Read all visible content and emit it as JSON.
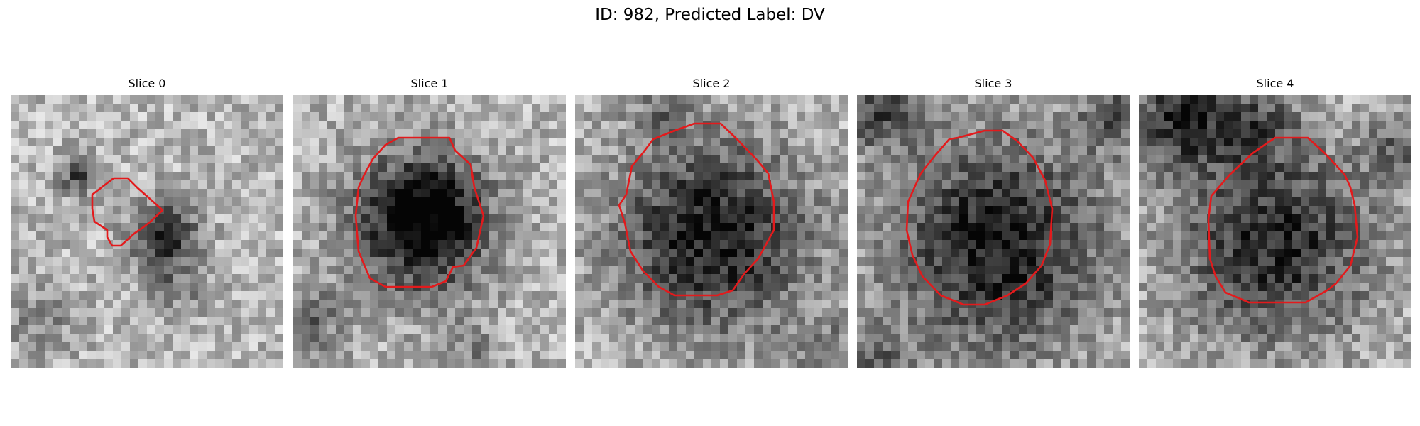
{
  "figure": {
    "title": "ID: 982, Predicted Label: DV"
  },
  "panels": [
    {
      "title": "Slice 0"
    },
    {
      "title": "Slice 1"
    },
    {
      "title": "Slice 2"
    },
    {
      "title": "Slice 3"
    },
    {
      "title": "Slice 4"
    }
  ],
  "colors": {
    "contour": "#e31a1c",
    "background": "#ffffff"
  }
}
